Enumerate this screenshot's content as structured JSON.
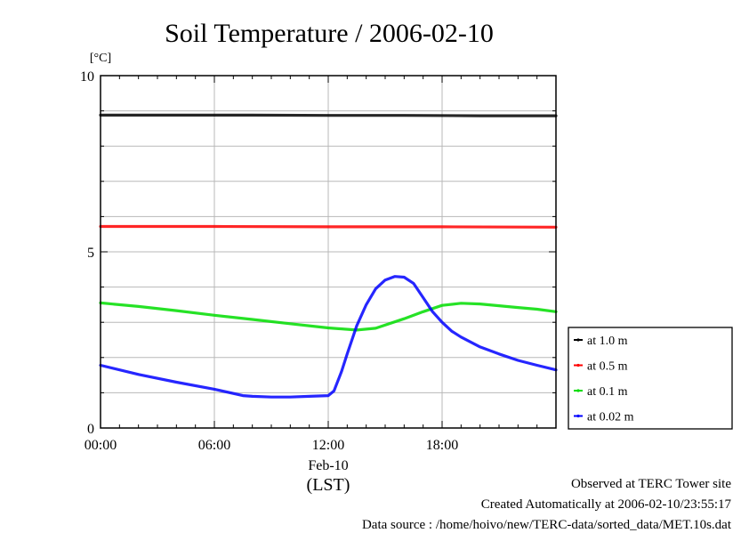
{
  "chart_data": {
    "type": "line",
    "title": "Soil Temperature / 2006-02-10",
    "yunit": "[°C]",
    "ylim": [
      0,
      10
    ],
    "xlim": [
      0,
      24
    ],
    "yticks": [
      {
        "value": 0,
        "label": "0"
      },
      {
        "value": 5,
        "label": "5"
      },
      {
        "value": 10,
        "label": "10"
      }
    ],
    "y_minor_step": 1,
    "xticks": [
      {
        "value": 0,
        "label": "00:00"
      },
      {
        "value": 6,
        "label": "06:00"
      },
      {
        "value": 12,
        "label": "12:00"
      },
      {
        "value": 18,
        "label": "18:00"
      }
    ],
    "xdate_label": "Feb-10",
    "xlabel": "(LST)",
    "grid": true,
    "legend_position": "right",
    "series": [
      {
        "name": "at 1.0 m",
        "color": "#000000",
        "x": [
          0,
          4,
          8,
          12,
          16,
          20,
          24
        ],
        "y": [
          8.88,
          8.88,
          8.88,
          8.87,
          8.87,
          8.86,
          8.86
        ]
      },
      {
        "name": "at 0.5 m",
        "color": "#ff0000",
        "x": [
          0,
          6,
          12,
          18,
          24
        ],
        "y": [
          5.72,
          5.72,
          5.71,
          5.71,
          5.7
        ]
      },
      {
        "name": "at 0.1 m",
        "color": "#00dd00",
        "x": [
          0,
          2,
          4,
          6,
          8,
          10,
          12,
          13.5,
          14.5,
          16,
          17,
          18,
          19,
          20,
          21,
          22,
          23,
          24
        ],
        "y": [
          3.55,
          3.45,
          3.33,
          3.2,
          3.08,
          2.96,
          2.84,
          2.78,
          2.83,
          3.1,
          3.3,
          3.48,
          3.54,
          3.52,
          3.47,
          3.42,
          3.37,
          3.3
        ]
      },
      {
        "name": "at 0.02 m",
        "color": "#0000ff",
        "x": [
          0,
          2,
          4,
          6,
          7.5,
          8,
          9,
          10,
          11,
          12,
          12.3,
          12.7,
          13,
          13.5,
          14,
          14.5,
          15,
          15.5,
          16,
          16.5,
          17,
          17.5,
          18,
          18.5,
          19,
          20,
          21,
          22,
          23,
          24
        ],
        "y": [
          1.78,
          1.52,
          1.3,
          1.1,
          0.92,
          0.9,
          0.88,
          0.88,
          0.9,
          0.92,
          1.05,
          1.6,
          2.1,
          2.9,
          3.5,
          3.95,
          4.2,
          4.3,
          4.28,
          4.1,
          3.7,
          3.3,
          3.0,
          2.75,
          2.58,
          2.3,
          2.1,
          1.92,
          1.78,
          1.65
        ]
      }
    ]
  },
  "footer": {
    "line1": "Observed at TERC Tower site",
    "line2": "Created Automatically at 2006-02-10/23:55:17",
    "line3": "Data source : /home/hoivo/new/TERC-data/sorted_data/MET.10s.dat"
  }
}
